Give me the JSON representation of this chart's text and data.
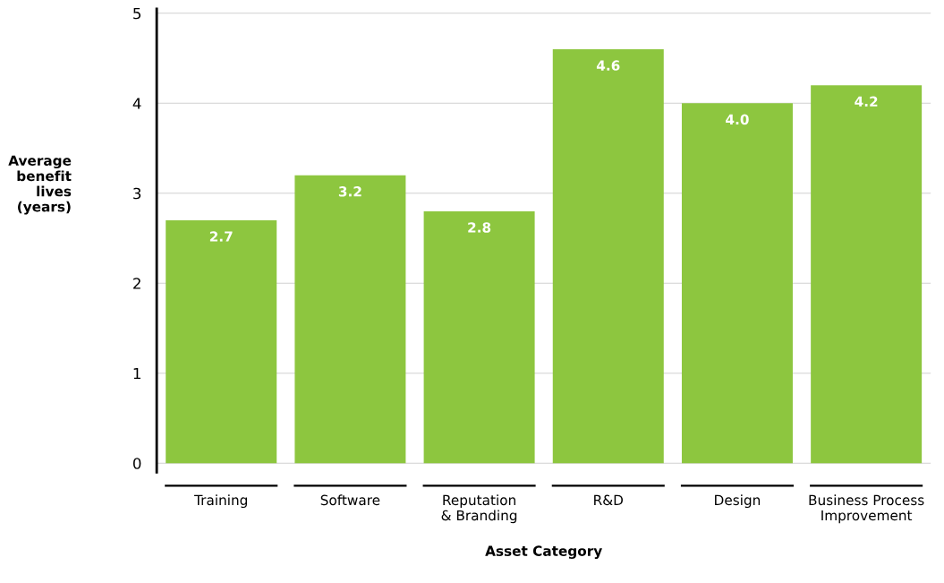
{
  "chart_data": {
    "type": "bar",
    "xlabel": "Asset Category",
    "ylabel": "Average\nbenefit\nlives\n(years)",
    "categories": [
      "Training",
      "Software",
      "Reputation\n& Branding",
      "R&D",
      "Design",
      "Business Process\nImprovement"
    ],
    "values": [
      2.7,
      3.2,
      2.8,
      4.6,
      4.0,
      4.2
    ],
    "value_labels": [
      "2.7",
      "3.2",
      "2.8",
      "4.6",
      "4.0",
      "4.2"
    ],
    "color": "#8dc63f",
    "ylim": [
      -0.1,
      5.05
    ],
    "yticks": [
      0,
      1,
      2,
      3,
      4,
      5
    ],
    "grid": "y"
  }
}
